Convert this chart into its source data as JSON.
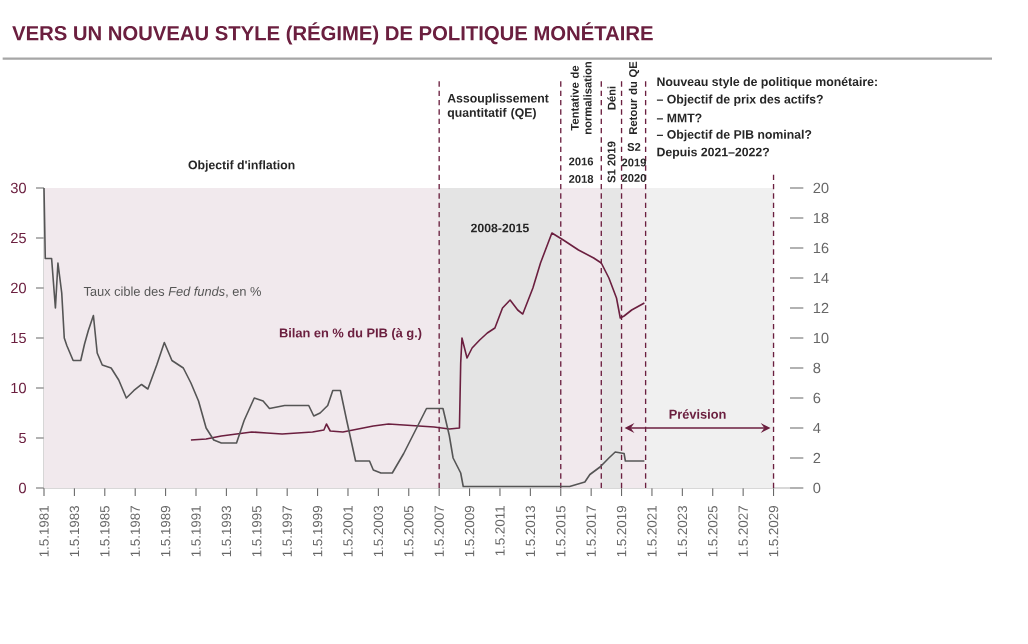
{
  "chart_data": {
    "type": "line",
    "title": "VERS UN NOUVEAU STYLE (RÉGIME) DE POLITIQUE MONÉTAIRE",
    "xlim": [
      "1981-05-01",
      "2030-06-01"
    ],
    "xticks": [
      {
        "value": "1981-05-01",
        "label": "1.5.1981"
      },
      {
        "value": "1983-05-01",
        "label": "1.5.1983"
      },
      {
        "value": "1985-05-01",
        "label": "1.5.1985"
      },
      {
        "value": "1987-05-01",
        "label": "1.5.1987"
      },
      {
        "value": "1989-05-01",
        "label": "1.5.1989"
      },
      {
        "value": "1991-05-01",
        "label": "1.5.1991"
      },
      {
        "value": "1993-05-01",
        "label": "1.5.1993"
      },
      {
        "value": "1995-05-01",
        "label": "1.5.1995"
      },
      {
        "value": "1997-05-01",
        "label": "1.5.1997"
      },
      {
        "value": "1999-05-01",
        "label": "1.5.1999"
      },
      {
        "value": "2001-05-01",
        "label": "1.5.2001"
      },
      {
        "value": "2003-05-01",
        "label": "1.5.2003"
      },
      {
        "value": "2005-05-01",
        "label": "1.5.2005"
      },
      {
        "value": "2007-05-01",
        "label": "1.5.2007"
      },
      {
        "value": "2009-05-01",
        "label": "1.5.2009"
      },
      {
        "value": "2011-05-01",
        "label": "1.5.2011"
      },
      {
        "value": "2013-05-01",
        "label": "1.5.2013"
      },
      {
        "value": "2015-05-01",
        "label": "1.5.2015"
      },
      {
        "value": "2017-05-01",
        "label": "1.5.2017"
      },
      {
        "value": "2019-05-01",
        "label": "1.5.2019"
      },
      {
        "value": "2021-05-01",
        "label": "1.5.2021"
      },
      {
        "value": "2023-05-01",
        "label": "1.5.2023"
      },
      {
        "value": "2025-05-01",
        "label": "1.5.2025"
      },
      {
        "value": "2027-05-01",
        "label": "1.5.2027"
      },
      {
        "value": "2029-05-01",
        "label": "1.5.2029"
      }
    ],
    "ylim": [
      0,
      30
    ],
    "yticks": [
      0,
      5,
      10,
      15,
      20,
      25,
      30
    ],
    "y2lim": [
      0,
      20
    ],
    "y2ticks": [
      0,
      2,
      4,
      6,
      8,
      10,
      12,
      14,
      16,
      18,
      20
    ],
    "series": [
      {
        "name": "Bilan en % du PIB (à g.)",
        "color": "#6b1f3f",
        "x": [
          "1991-01",
          "1992-01",
          "1993-01",
          "1994-01",
          "1995-01",
          "1996-01",
          "1997-01",
          "1998-01",
          "1999-01",
          "1999-10",
          "1999-12",
          "2000-03",
          "2001-01",
          "2002-01",
          "2003-01",
          "2004-01",
          "2005-01",
          "2006-01",
          "2007-01",
          "2008-01",
          "2008-09",
          "2008-10",
          "2008-11",
          "2009-03",
          "2009-07",
          "2010-01",
          "2010-07",
          "2011-01",
          "2011-07",
          "2012-01",
          "2012-07",
          "2012-11",
          "2013-07",
          "2014-01",
          "2014-07",
          "2014-10",
          "2015-07",
          "2016-07",
          "2017-07",
          "2018-01",
          "2018-07",
          "2019-01",
          "2019-04",
          "2019-07",
          "2020-01",
          "2020-11"
        ],
        "values": [
          4.8,
          4.9,
          5.2,
          5.4,
          5.6,
          5.5,
          5.4,
          5.5,
          5.6,
          5.8,
          6.4,
          5.7,
          5.6,
          5.9,
          6.2,
          6.4,
          6.3,
          6.2,
          6.1,
          5.9,
          6.0,
          12.5,
          15.0,
          13.0,
          14.0,
          14.8,
          15.5,
          16.0,
          18.0,
          18.8,
          17.8,
          17.4,
          20.0,
          22.5,
          24.5,
          25.5,
          24.8,
          23.8,
          23.0,
          22.5,
          21.0,
          19.0,
          17.0,
          17.2,
          17.8,
          18.5
        ]
      },
      {
        "name": "Taux cible des *Fed funds*, en %",
        "color": "#555555",
        "axis": "y2",
        "x": [
          "1981-05",
          "1981-06",
          "1981-11",
          "1982-02",
          "1982-04",
          "1982-07",
          "1982-09",
          "1982-11",
          "1983-04",
          "1983-10",
          "1984-01",
          "1984-04",
          "1984-08",
          "1984-11",
          "1985-03",
          "1985-10",
          "1986-04",
          "1986-10",
          "1987-04",
          "1987-10",
          "1988-03",
          "1988-10",
          "1989-04",
          "1989-10",
          "1990-07",
          "1991-01",
          "1991-07",
          "1992-01",
          "1992-07",
          "1993-01",
          "1994-01",
          "1994-07",
          "1995-03",
          "1995-10",
          "1996-03",
          "1997-03",
          "1998-10",
          "1999-02",
          "1999-07",
          "2000-01",
          "2000-05",
          "2000-11",
          "2001-04",
          "2001-11",
          "2002-10",
          "2003-01",
          "2003-07",
          "2004-04",
          "2005-01",
          "2006-01",
          "2006-07",
          "2007-08",
          "2008-01",
          "2008-04",
          "2008-10",
          "2008-12",
          "2015-12",
          "2016-12",
          "2017-04",
          "2017-12",
          "2018-07",
          "2018-12",
          "2019-07",
          "2019-08",
          "2020-11"
        ],
        "values": [
          20,
          15.3,
          15.3,
          12,
          15,
          13,
          10,
          9.5,
          8.5,
          8.5,
          9.6,
          10.5,
          11.5,
          9,
          8.2,
          8,
          7.2,
          6,
          6.5,
          6.9,
          6.6,
          8.2,
          9.7,
          8.5,
          8,
          7,
          5.8,
          4,
          3.2,
          3,
          3,
          4.5,
          6,
          5.8,
          5.3,
          5.5,
          5.5,
          4.8,
          5,
          5.5,
          6.5,
          6.5,
          4.5,
          1.8,
          1.8,
          1.2,
          1,
          1,
          2.3,
          4.3,
          5.3,
          5.3,
          3.5,
          2,
          1,
          0.1,
          0.1,
          0.4,
          0.9,
          1.4,
          2,
          2.4,
          2.3,
          1.8,
          1.8
        ]
      }
    ],
    "bands": [
      {
        "axis": "x",
        "from": "1981-05-01",
        "to": "2007-05-01",
        "label": "Objectif d'inflation",
        "color": "#f1e9ed"
      },
      {
        "axis": "x",
        "from": "2007-05-01",
        "to": "2015-05-01",
        "color": "#e4e4e4"
      },
      {
        "axis": "x",
        "from": "2015-05-01",
        "to": "2018-01-01",
        "color": "#f1e9ed"
      },
      {
        "axis": "x",
        "from": "2018-01-01",
        "to": "2019-05-01",
        "color": "#e6e6e6"
      },
      {
        "axis": "x",
        "from": "2019-05-01",
        "to": "2020-12-01",
        "color": "#f1e9ed"
      },
      {
        "axis": "x",
        "from": "2020-12-01",
        "to": "2029-05-01",
        "color": "#f0f0f0"
      }
    ],
    "ref_lines": [
      {
        "axis": "x",
        "value": "2007-05-01",
        "color": "#6b1f3f",
        "line_style": "dashed"
      },
      {
        "axis": "x",
        "value": "2015-05-01",
        "color": "#6b1f3f",
        "line_style": "dashed"
      },
      {
        "axis": "x",
        "value": "2018-01-01",
        "color": "#6b1f3f",
        "line_style": "dashed"
      },
      {
        "axis": "x",
        "value": "2019-05-01",
        "color": "#6b1f3f",
        "line_style": "dashed"
      },
      {
        "axis": "x",
        "value": "2020-12-01",
        "color": "#6b1f3f",
        "line_style": "dashed"
      },
      {
        "axis": "x",
        "value": "2029-05-01",
        "color": "#6b1f3f",
        "line_style": "dashed"
      }
    ],
    "annotations": [
      "Assouplissement quantitatif (QE)",
      "Tentative de normalisation",
      "Déni",
      "Retour du QE",
      "2008-2015",
      "2016",
      "2018",
      "S1 2019",
      "S2",
      "2019",
      "2020",
      "Nouveau style de politique monétaire:",
      "– Objectif de prix des actifs?",
      "– MMT?",
      "– Objectif de PIB nominal?",
      "Depuis 2021–2022?",
      "Prévision"
    ]
  }
}
